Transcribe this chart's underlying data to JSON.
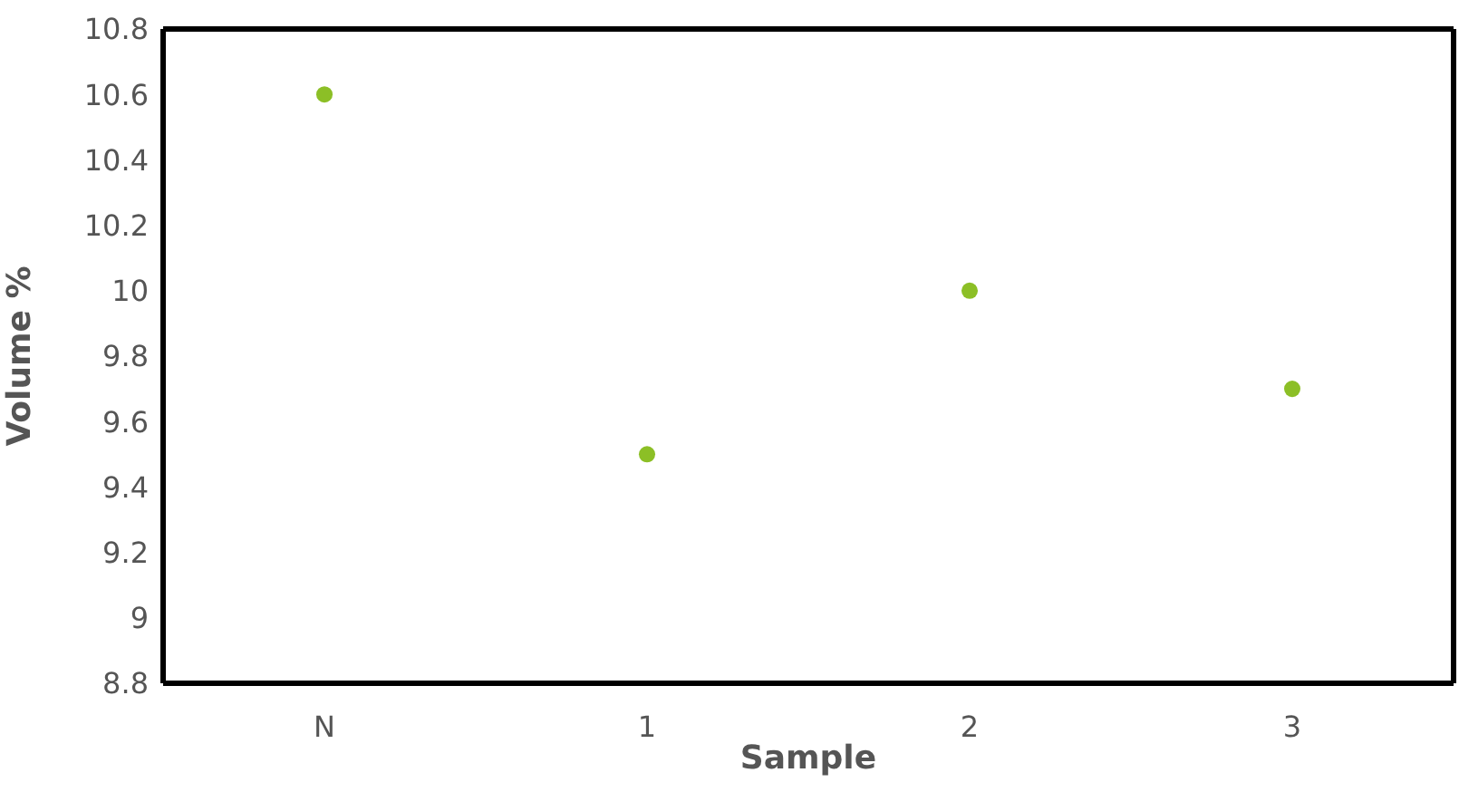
{
  "chart_data": {
    "type": "scatter",
    "xlabel": "Sample",
    "ylabel": "Volume %",
    "categories": [
      "N",
      "1",
      "2",
      "3"
    ],
    "series": [
      {
        "color": "#8cbf26",
        "values": [
          10.6,
          9.5,
          10.0,
          9.7
        ]
      }
    ],
    "ylim": [
      8.8,
      10.8
    ],
    "yticks": [
      8.8,
      9,
      9.2,
      9.4,
      9.6,
      9.8,
      10,
      10.2,
      10.4,
      10.6,
      10.8
    ],
    "marker": "circle",
    "grid": false,
    "legend": false
  }
}
